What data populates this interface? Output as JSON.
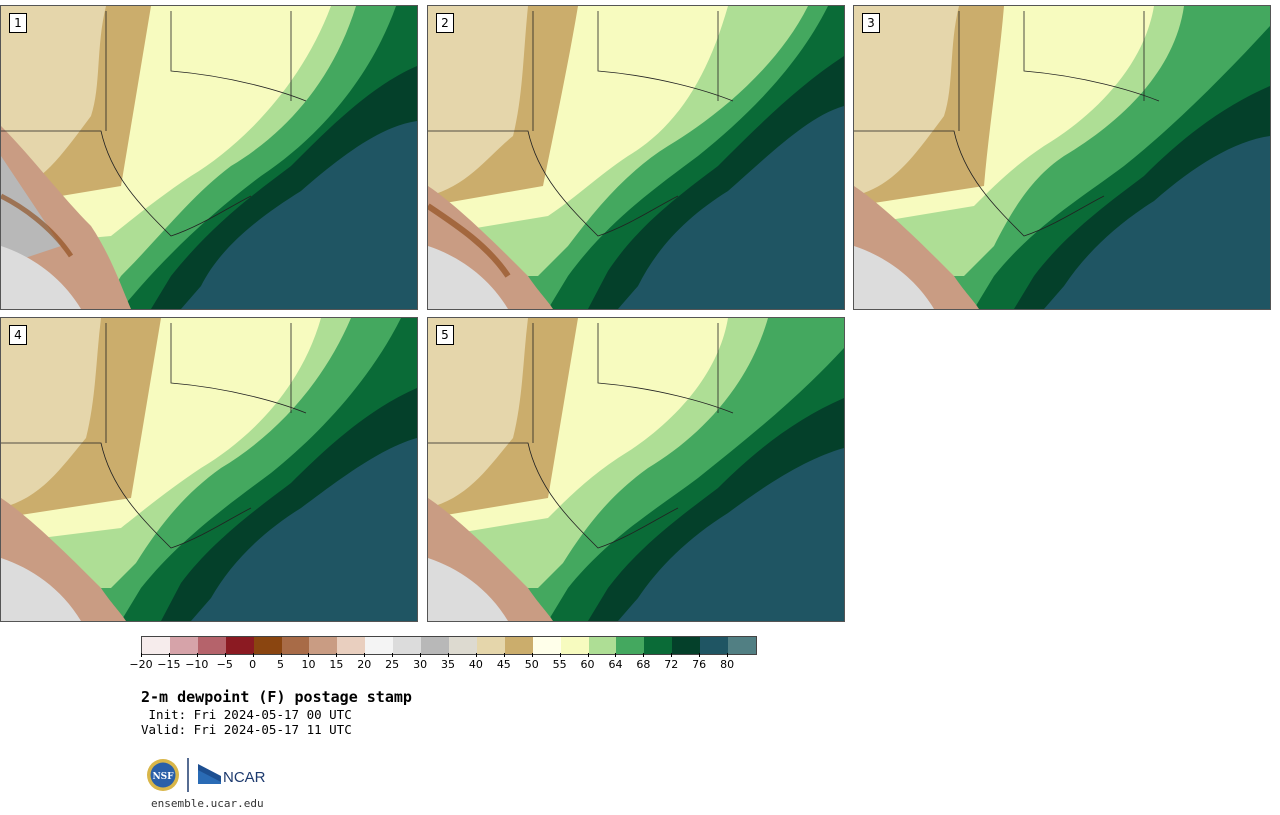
{
  "panels": [
    {
      "label": "1"
    },
    {
      "label": "2"
    },
    {
      "label": "3"
    },
    {
      "label": "4"
    },
    {
      "label": "5"
    }
  ],
  "colorbar": {
    "colors": [
      "#f6ecec",
      "#d6a3a9",
      "#b5636b",
      "#8b1a22",
      "#8a4510",
      "#a86b47",
      "#c99c83",
      "#e9cfbf",
      "#f4f4f4",
      "#dcdcdc",
      "#b8b8b8",
      "#dddad0",
      "#e5d6ab",
      "#cbad6c",
      "#ffffea",
      "#f7fbbf",
      "#aede95",
      "#44a85f",
      "#0a6b37",
      "#04402a",
      "#1f5563",
      "#517f83"
    ],
    "ticks": [
      "−20",
      "−15",
      "−10",
      "−5",
      "0",
      "5",
      "10",
      "15",
      "20",
      "25",
      "30",
      "35",
      "40",
      "45",
      "50",
      "55",
      "60",
      "64",
      "68",
      "72",
      "76",
      "80"
    ]
  },
  "title": "2-m dewpoint (F) postage stamp",
  "init_line": " Init: Fri 2024-05-17 00 UTC",
  "valid_line": "Valid: Fri 2024-05-17 11 UTC",
  "logos": {
    "nsf": "NSF",
    "ncar": "NCAR"
  },
  "url": "ensemble.ucar.edu"
}
